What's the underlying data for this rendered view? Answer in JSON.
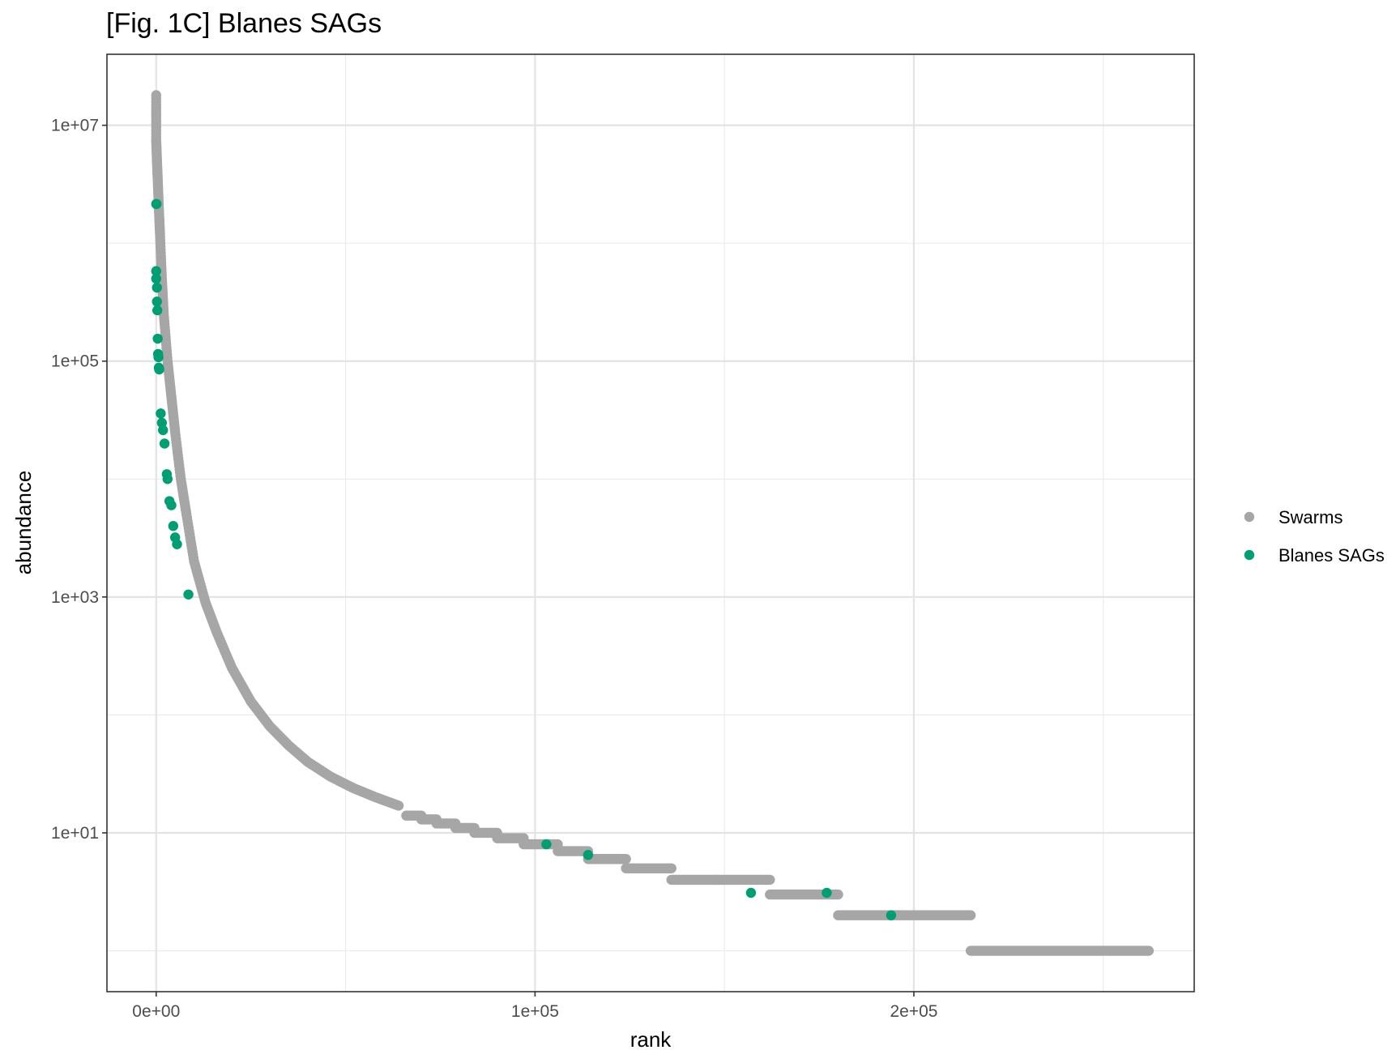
{
  "chart_data": {
    "type": "scatter",
    "title": "[Fig. 1C] Blanes SAGs",
    "xlabel": "rank",
    "ylabel": "abundance",
    "xlim": [
      -13000,
      274000
    ],
    "ylim": [
      0.45,
      40000000
    ],
    "y_scale": "log10",
    "x_ticks": [
      {
        "value": 0,
        "label": "0e+00"
      },
      {
        "value": 100000,
        "label": "1e+05"
      },
      {
        "value": 200000,
        "label": "2e+05"
      }
    ],
    "x_minor_ticks": [
      50000,
      150000,
      250000
    ],
    "y_ticks": [
      {
        "value": 10,
        "label": "1e+01"
      },
      {
        "value": 1000,
        "label": "1e+03"
      },
      {
        "value": 100000,
        "label": "1e+05"
      },
      {
        "value": 10000000,
        "label": "1e+07"
      }
    ],
    "y_minor_ticks": [
      1,
      100,
      10000,
      1000000
    ],
    "grid": true,
    "legend_position": "right",
    "colors": {
      "Swarms": "#a6a6a6",
      "Blanes SAGs": "#009e73"
    },
    "series": [
      {
        "name": "Swarms",
        "color": "#a6a6a6",
        "curve": [
          [
            0,
            18000000
          ],
          [
            0,
            7500000
          ],
          [
            200,
            5000000
          ],
          [
            400,
            3500000
          ],
          [
            700,
            2000000
          ],
          [
            1000,
            1200000
          ],
          [
            1500,
            500000
          ],
          [
            2000,
            250000
          ],
          [
            3000,
            100000
          ],
          [
            4000,
            50000
          ],
          [
            5000,
            25000
          ],
          [
            6500,
            10000
          ],
          [
            8000,
            5000
          ],
          [
            10000,
            2000
          ],
          [
            13000,
            900
          ],
          [
            16000,
            500
          ],
          [
            20000,
            250
          ],
          [
            25000,
            130
          ],
          [
            30000,
            80
          ],
          [
            35000,
            55
          ],
          [
            40000,
            40
          ],
          [
            46000,
            30
          ],
          [
            52000,
            24
          ],
          [
            58000,
            20
          ],
          [
            64000,
            17
          ]
        ],
        "plateaus": [
          {
            "x": [
              66000,
              70000
            ],
            "y": 14
          },
          {
            "x": [
              70000,
              74000
            ],
            "y": 13
          },
          {
            "x": [
              74000,
              79000
            ],
            "y": 12
          },
          {
            "x": [
              79000,
              84000
            ],
            "y": 11
          },
          {
            "x": [
              84000,
              90000
            ],
            "y": 10
          },
          {
            "x": [
              90000,
              97000
            ],
            "y": 9
          },
          {
            "x": [
              97000,
              106000
            ],
            "y": 8
          },
          {
            "x": [
              106000,
              114000
            ],
            "y": 7
          },
          {
            "x": [
              114000,
              124000
            ],
            "y": 6
          },
          {
            "x": [
              124000,
              136000
            ],
            "y": 5
          },
          {
            "x": [
              136000,
              148000
            ],
            "y": 4
          },
          {
            "x": [
              148000,
              162000
            ],
            "y": 4
          },
          {
            "x": [
              162000,
              180000
            ],
            "y": 3
          },
          {
            "x": [
              180000,
              215000
            ],
            "y": 2
          },
          {
            "x": [
              215000,
              262000
            ],
            "y": 1
          }
        ]
      },
      {
        "name": "Blanes SAGs",
        "color": "#009e73",
        "points": [
          [
            0,
            2150000
          ],
          [
            100,
            2150000
          ],
          [
            0,
            580000
          ],
          [
            0,
            500000
          ],
          [
            200,
            420000
          ],
          [
            200,
            320000
          ],
          [
            300,
            270000
          ],
          [
            400,
            155000
          ],
          [
            500,
            115000
          ],
          [
            600,
            108000
          ],
          [
            700,
            88000
          ],
          [
            800,
            85000
          ],
          [
            1200,
            36000
          ],
          [
            1500,
            30000
          ],
          [
            1800,
            26000
          ],
          [
            2200,
            20000
          ],
          [
            2800,
            11000
          ],
          [
            3000,
            10000
          ],
          [
            3500,
            6500
          ],
          [
            4000,
            6000
          ],
          [
            4500,
            4000
          ],
          [
            5000,
            3200
          ],
          [
            5500,
            2800
          ],
          [
            8500,
            1050
          ],
          [
            103000,
            8
          ],
          [
            114000,
            6.5
          ],
          [
            157000,
            3.1
          ],
          [
            177000,
            3.1
          ],
          [
            194000,
            2
          ]
        ]
      }
    ],
    "legend": [
      {
        "label": "Swarms",
        "color": "#a6a6a6"
      },
      {
        "label": "Blanes SAGs",
        "color": "#009e73"
      }
    ]
  }
}
